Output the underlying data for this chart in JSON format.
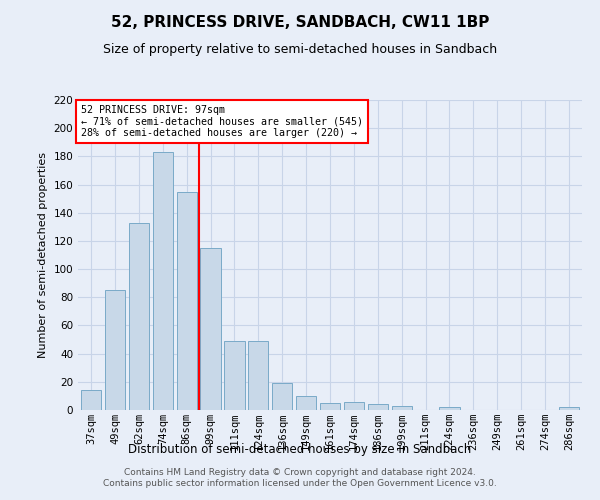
{
  "title": "52, PRINCESS DRIVE, SANDBACH, CW11 1BP",
  "subtitle": "Size of property relative to semi-detached houses in Sandbach",
  "xlabel": "Distribution of semi-detached houses by size in Sandbach",
  "ylabel": "Number of semi-detached properties",
  "categories": [
    "37sqm",
    "49sqm",
    "62sqm",
    "74sqm",
    "86sqm",
    "99sqm",
    "111sqm",
    "124sqm",
    "136sqm",
    "149sqm",
    "161sqm",
    "174sqm",
    "186sqm",
    "199sqm",
    "211sqm",
    "224sqm",
    "236sqm",
    "249sqm",
    "261sqm",
    "274sqm",
    "286sqm"
  ],
  "values": [
    14,
    85,
    133,
    183,
    155,
    115,
    49,
    49,
    19,
    10,
    5,
    6,
    4,
    3,
    0,
    2,
    0,
    0,
    0,
    0,
    2
  ],
  "ylim": [
    0,
    220
  ],
  "yticks": [
    0,
    20,
    40,
    60,
    80,
    100,
    120,
    140,
    160,
    180,
    200,
    220
  ],
  "bar_color": "#c8d8e8",
  "bar_edge_color": "#7aaac8",
  "vline_x": 4.5,
  "vline_color": "red",
  "annotation_title": "52 PRINCESS DRIVE: 97sqm",
  "annotation_line1": "← 71% of semi-detached houses are smaller (545)",
  "annotation_line2": "28% of semi-detached houses are larger (220) →",
  "annotation_box_color": "white",
  "annotation_box_edge": "red",
  "footer1": "Contains HM Land Registry data © Crown copyright and database right 2024.",
  "footer2": "Contains public sector information licensed under the Open Government Licence v3.0.",
  "background_color": "#e8eef8",
  "grid_color": "#c8d4e8",
  "title_fontsize": 11,
  "subtitle_fontsize": 9,
  "ylabel_fontsize": 8,
  "xlabel_fontsize": 8.5,
  "tick_fontsize": 7.5,
  "footer_fontsize": 6.5
}
